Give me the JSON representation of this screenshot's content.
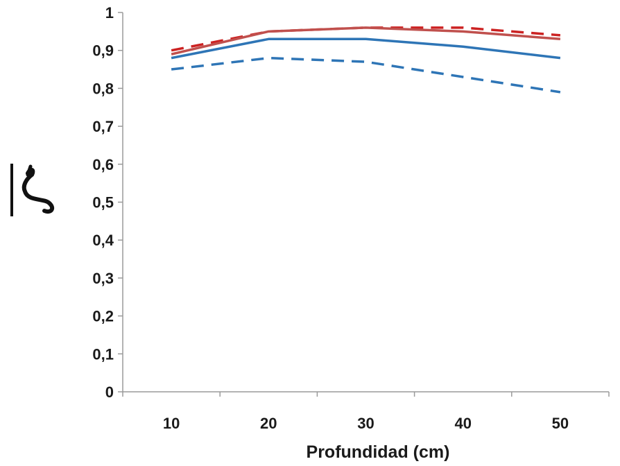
{
  "chart_data": {
    "type": "line",
    "xlabel": "Profundidad (cm)",
    "ylabel": "ζ̄",
    "x": [
      10,
      20,
      30,
      40,
      50
    ],
    "x_tick_labels": [
      "10",
      "20",
      "30",
      "40",
      "50"
    ],
    "ylim": [
      0,
      1
    ],
    "y_tick_labels": [
      "0",
      "0,1",
      "0,2",
      "0,3",
      "0,4",
      "0,5",
      "0,6",
      "0,7",
      "0,8",
      "0,9",
      "1"
    ],
    "grid": false,
    "legend": "none",
    "series": [
      {
        "values": [
          0.9,
          0.95,
          0.96,
          0.96,
          0.94
        ],
        "color": "#cc2222",
        "dash": true
      },
      {
        "values": [
          0.89,
          0.95,
          0.96,
          0.95,
          0.93
        ],
        "color": "#c0504d",
        "dash": false
      },
      {
        "values": [
          0.88,
          0.93,
          0.93,
          0.91,
          0.88
        ],
        "color": "#2e75b6",
        "dash": false
      },
      {
        "values": [
          0.85,
          0.88,
          0.87,
          0.83,
          0.79
        ],
        "color": "#2e75b6",
        "dash": true
      }
    ]
  }
}
